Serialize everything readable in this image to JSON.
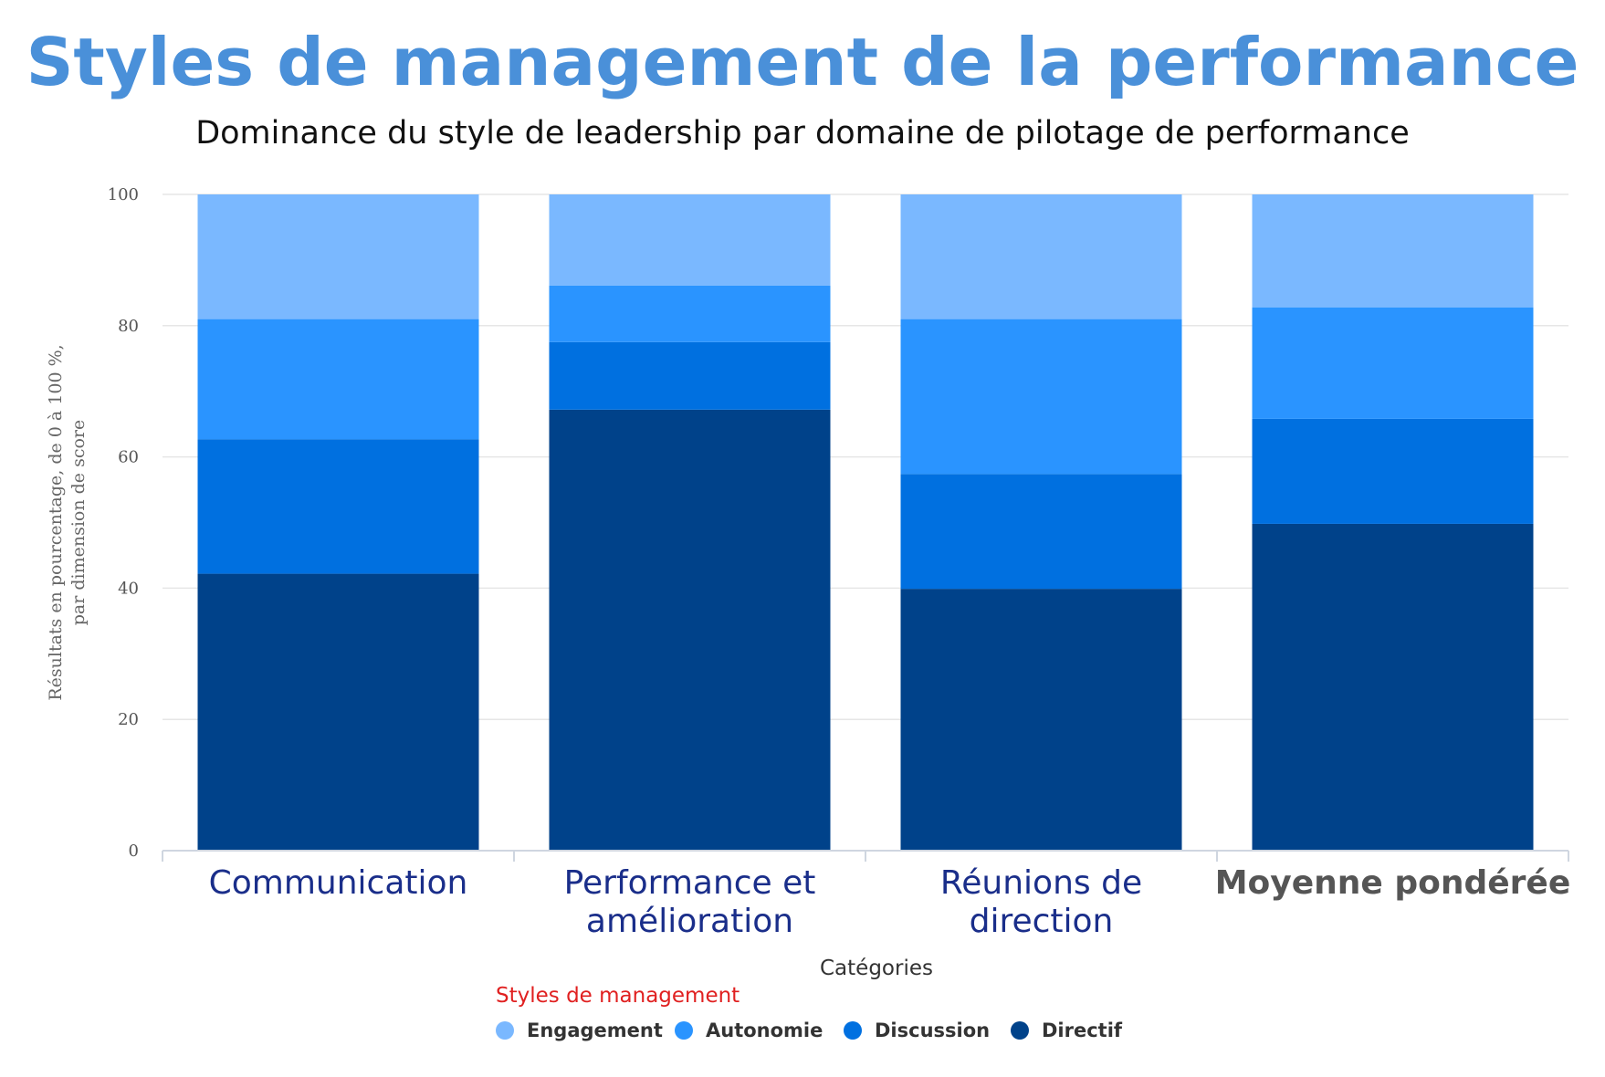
{
  "chart_data": {
    "type": "bar",
    "stacked": true,
    "title": "Styles de management de la performance",
    "subtitle": "Dominance du style de leadership par domaine de pilotage de performance",
    "xlabel": "Catégories",
    "ylabel": "Résultats en pourcentage, de 0 à 100 %, par dimension de score",
    "ylim": [
      0,
      100
    ],
    "yticks": [
      0,
      20,
      40,
      60,
      80,
      100
    ],
    "grid": true,
    "legend_title": "Styles de management",
    "legend_position": "bottom",
    "categories": [
      "Communication",
      "Performance et amélioration",
      "Réunions de direction",
      "Moyenne pondérée"
    ],
    "category_colors": [
      "#1a2e8a",
      "#1a2e8a",
      "#1a2e8a",
      "#555555"
    ],
    "series": [
      {
        "name": "Directif",
        "color": "#00428a",
        "values": [
          42.2,
          67.2,
          39.9,
          49.8
        ]
      },
      {
        "name": "Discussion",
        "color": "#0070e0",
        "values": [
          20.5,
          10.3,
          17.5,
          16.0
        ]
      },
      {
        "name": "Autonomie",
        "color": "#2a94ff",
        "values": [
          18.3,
          8.6,
          23.6,
          17.0
        ]
      },
      {
        "name": "Engagement",
        "color": "#7ab8ff",
        "values": [
          19.0,
          13.9,
          19.0,
          17.2
        ]
      }
    ],
    "legend_order": [
      "Engagement",
      "Autonomie",
      "Discussion",
      "Directif"
    ]
  }
}
